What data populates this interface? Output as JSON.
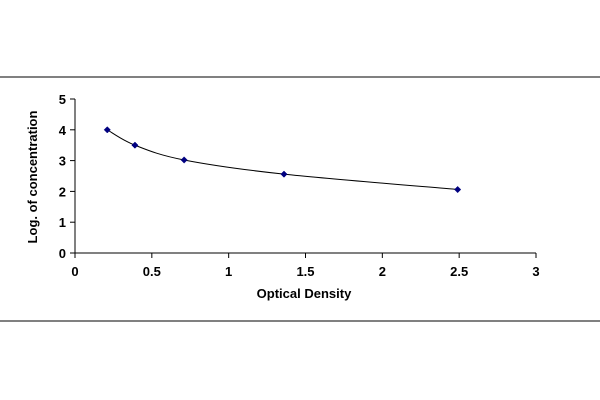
{
  "chart_data": {
    "type": "scatter",
    "title": "",
    "xlabel": "Optical Density",
    "ylabel": "Log. of concentration",
    "xlim": [
      0,
      3
    ],
    "ylim": [
      0,
      5
    ],
    "x_ticks": [
      "0",
      "0.5",
      "1",
      "1.5",
      "2",
      "2.5",
      "3"
    ],
    "y_ticks": [
      "0",
      "1",
      "2",
      "3",
      "4",
      "5"
    ],
    "grid": false,
    "legend": "none",
    "series": [
      {
        "x": [
          0.21,
          0.39,
          0.71,
          1.36,
          2.49
        ],
        "y": [
          4.0,
          3.5,
          3.02,
          2.56,
          2.06
        ],
        "marker": "diamond",
        "color": "#000080",
        "trendline": true,
        "trendline_color": "#000000"
      }
    ]
  }
}
